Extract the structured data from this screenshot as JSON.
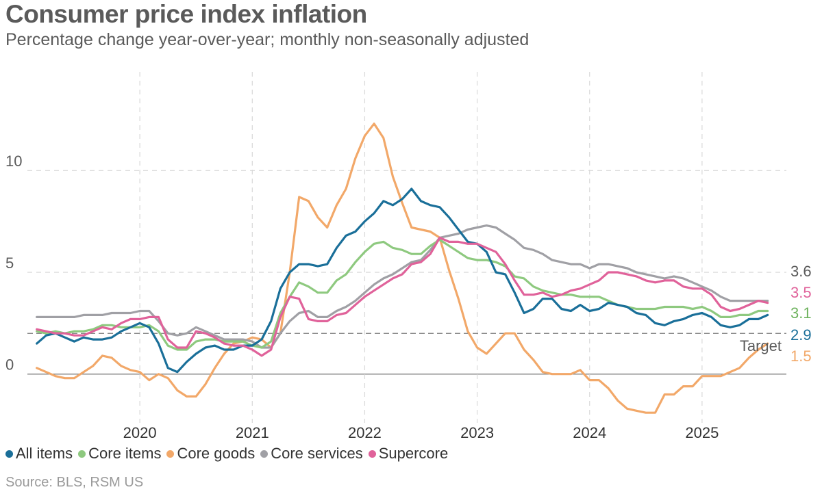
{
  "title": "Consumer price index inflation",
  "subtitle": "Percentage change year-over-year; monthly non-seasonally adjusted",
  "source": "Source: BLS, RSM US",
  "chart_data": {
    "type": "line",
    "title": "Consumer price index inflation",
    "subtitle": "Percentage change year-over-year; monthly non-seasonally adjusted",
    "xlabel": "",
    "ylabel": "",
    "x_start": "2019-02",
    "x_end": "2025-09",
    "xlim": [
      "2019-01",
      "2025-10"
    ],
    "ylim": [
      -2.8,
      13
    ],
    "yticks": [
      0,
      5,
      10
    ],
    "xticks": [
      "2020",
      "2021",
      "2022",
      "2023",
      "2024",
      "2025"
    ],
    "grid": true,
    "legend_position": "bottom",
    "target": {
      "label": "Target",
      "value": 2
    },
    "series": [
      {
        "name": "All items",
        "color": "#1a6f99",
        "end_label": "2.9",
        "values": [
          1.5,
          1.9,
          2.0,
          1.8,
          1.6,
          1.8,
          1.7,
          1.7,
          1.8,
          2.1,
          2.3,
          2.5,
          2.3,
          1.5,
          0.3,
          0.1,
          0.6,
          1.0,
          1.3,
          1.4,
          1.2,
          1.2,
          1.4,
          1.4,
          1.7,
          2.6,
          4.2,
          5.0,
          5.4,
          5.4,
          5.3,
          5.4,
          6.2,
          6.8,
          7.0,
          7.5,
          7.9,
          8.5,
          8.3,
          8.6,
          9.1,
          8.5,
          8.3,
          8.2,
          7.7,
          7.1,
          6.5,
          6.4,
          6.0,
          5.0,
          4.9,
          4.0,
          3.0,
          3.2,
          3.7,
          3.7,
          3.2,
          3.1,
          3.4,
          3.1,
          3.2,
          3.5,
          3.4,
          3.3,
          3.0,
          2.9,
          2.5,
          2.4,
          2.6,
          2.7,
          2.9,
          3.0,
          2.8,
          2.4,
          2.3,
          2.4,
          2.7,
          2.7,
          2.9
        ]
      },
      {
        "name": "Core items",
        "color": "#8ec97f",
        "end_label": "3.1",
        "values": [
          2.1,
          2.0,
          2.1,
          2.0,
          2.1,
          2.1,
          2.2,
          2.4,
          2.4,
          2.3,
          2.3,
          2.3,
          2.4,
          2.1,
          1.4,
          1.2,
          1.2,
          1.6,
          1.7,
          1.7,
          1.6,
          1.6,
          1.6,
          1.4,
          1.3,
          1.6,
          3.0,
          3.8,
          4.5,
          4.3,
          4.0,
          4.0,
          4.6,
          4.9,
          5.5,
          6.0,
          6.4,
          6.5,
          6.2,
          6.1,
          5.9,
          5.9,
          6.3,
          6.6,
          6.3,
          6.0,
          5.7,
          5.6,
          5.6,
          5.5,
          5.3,
          4.8,
          4.7,
          4.3,
          4.1,
          4.0,
          3.9,
          3.9,
          3.8,
          3.8,
          3.8,
          3.6,
          3.4,
          3.3,
          3.2,
          3.2,
          3.2,
          3.3,
          3.3,
          3.3,
          3.2,
          3.3,
          3.1,
          2.8,
          2.8,
          2.9,
          2.9,
          3.1,
          3.1
        ]
      },
      {
        "name": "Core goods",
        "color": "#f2a869",
        "end_label": "1.5",
        "values": [
          0.3,
          0.1,
          -0.1,
          -0.2,
          -0.2,
          0.1,
          0.4,
          0.9,
          0.8,
          0.4,
          0.2,
          0.1,
          -0.3,
          0.0,
          -0.2,
          -0.8,
          -1.1,
          -1.1,
          -0.5,
          0.3,
          1.0,
          1.5,
          1.6,
          1.8,
          1.7,
          1.3,
          2.0,
          5.0,
          8.7,
          8.5,
          7.7,
          7.2,
          8.3,
          9.1,
          10.6,
          11.7,
          12.3,
          11.6,
          9.7,
          8.4,
          7.2,
          7.1,
          7.0,
          6.7,
          5.1,
          3.7,
          2.1,
          1.3,
          1.0,
          1.5,
          2.0,
          2.0,
          1.2,
          0.7,
          0.1,
          0.0,
          0.0,
          0.0,
          0.2,
          -0.3,
          -0.3,
          -0.7,
          -1.3,
          -1.7,
          -1.8,
          -1.9,
          -1.9,
          -1.0,
          -1.0,
          -0.6,
          -0.6,
          -0.1,
          -0.1,
          -0.1,
          0.1,
          0.3,
          0.8,
          1.2,
          1.5
        ]
      },
      {
        "name": "Core services",
        "color": "#a0a0a5",
        "end_label": "3.6",
        "values": [
          2.8,
          2.8,
          2.8,
          2.8,
          2.8,
          2.9,
          2.9,
          2.9,
          3.0,
          3.0,
          3.0,
          3.1,
          3.1,
          2.6,
          2.0,
          1.9,
          2.0,
          2.3,
          2.1,
          1.9,
          1.7,
          1.7,
          1.7,
          1.6,
          1.3,
          1.3,
          2.0,
          2.6,
          3.0,
          3.1,
          2.8,
          2.8,
          3.1,
          3.3,
          3.6,
          4.0,
          4.4,
          4.7,
          4.9,
          5.2,
          5.5,
          5.6,
          6.1,
          6.7,
          6.8,
          6.9,
          7.1,
          7.2,
          7.3,
          7.2,
          6.9,
          6.6,
          6.2,
          6.1,
          5.9,
          5.6,
          5.5,
          5.4,
          5.4,
          5.2,
          5.4,
          5.4,
          5.3,
          5.2,
          5.0,
          4.9,
          4.8,
          4.7,
          4.8,
          4.7,
          4.5,
          4.3,
          4.1,
          3.8,
          3.6,
          3.6,
          3.6,
          3.6,
          3.6
        ]
      },
      {
        "name": "Supercore",
        "color": "#e0629a",
        "end_label": "3.5",
        "values": [
          2.2,
          2.1,
          2.0,
          2.0,
          1.9,
          1.9,
          2.1,
          2.3,
          2.2,
          2.5,
          2.7,
          2.7,
          2.8,
          2.8,
          1.7,
          1.3,
          1.3,
          2.1,
          2.0,
          1.8,
          1.5,
          1.4,
          1.4,
          1.2,
          0.9,
          1.2,
          2.8,
          3.8,
          3.7,
          2.7,
          2.6,
          2.6,
          2.9,
          3.0,
          3.4,
          3.8,
          4.1,
          4.4,
          4.7,
          4.9,
          5.4,
          5.5,
          5.9,
          6.7,
          6.5,
          6.5,
          6.4,
          6.4,
          6.2,
          6.0,
          5.4,
          4.6,
          3.9,
          3.9,
          4.0,
          3.8,
          3.9,
          4.1,
          4.2,
          4.4,
          4.6,
          5.0,
          5.0,
          4.9,
          4.8,
          4.6,
          4.5,
          4.6,
          4.6,
          4.3,
          4.2,
          4.2,
          3.9,
          3.3,
          3.1,
          3.2,
          3.4,
          3.6,
          3.5
        ]
      }
    ]
  }
}
